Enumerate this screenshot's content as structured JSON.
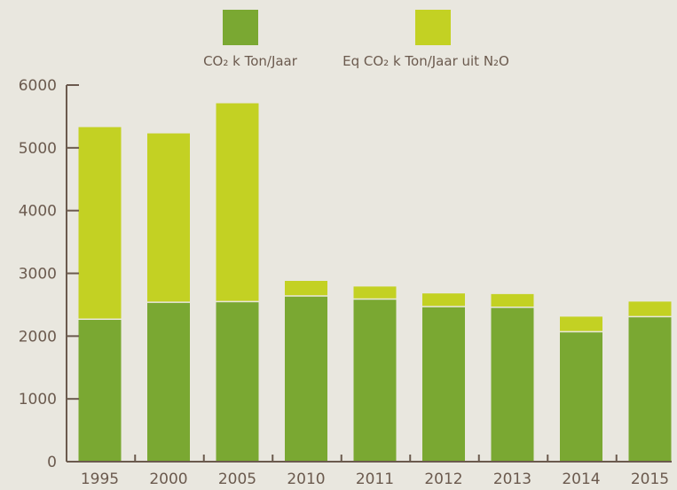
{
  "chart_data": {
    "type": "bar",
    "stacked": true,
    "categories": [
      "1995",
      "2000",
      "2005",
      "2010",
      "2011",
      "2012",
      "2013",
      "2014",
      "2015"
    ],
    "series": [
      {
        "name": "CO₂ k Ton/Jaar",
        "color": "#7aa832",
        "values": [
          2270,
          2540,
          2550,
          2640,
          2590,
          2470,
          2460,
          2070,
          2310
        ]
      },
      {
        "name": "Eq CO₂ k Ton/Jaar uit N₂O",
        "color": "#c3d123",
        "values": [
          3060,
          2690,
          3160,
          240,
          200,
          210,
          210,
          240,
          240
        ]
      }
    ],
    "ylim": [
      0,
      6000
    ],
    "yticks": [
      "0",
      "1000",
      "2000",
      "3000",
      "4000",
      "5000",
      "6000"
    ],
    "grid": false,
    "legend_position": "top-center"
  }
}
